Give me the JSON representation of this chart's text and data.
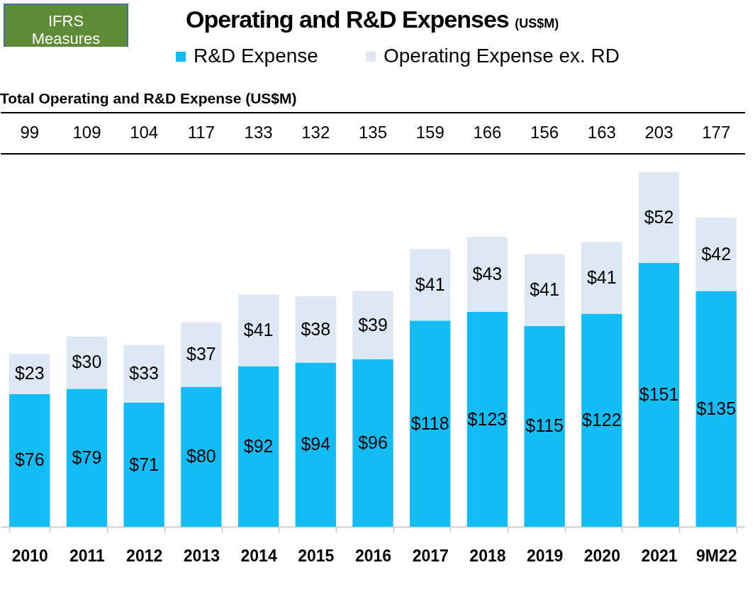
{
  "chart_data": {
    "type": "bar",
    "title": "Operating and R&D Expenses",
    "subtitle": "(US$M)",
    "stacked": true,
    "legend": "top",
    "annotations": [
      "IFRS Measures",
      "Total Operating and R&D Expense (US$M)",
      "99",
      "109",
      "104",
      "117",
      "133",
      "132",
      "135",
      "159",
      "166",
      "156",
      "163",
      "203",
      "177"
    ],
    "categories": [
      "2010",
      "2011",
      "2012",
      "2013",
      "2014",
      "2015",
      "2016",
      "2017",
      "2018",
      "2019",
      "2020",
      "2021",
      "9M22"
    ],
    "series": [
      {
        "name": "R&D Expense",
        "color": "#12bdf6",
        "values": [
          76,
          79,
          71,
          80,
          92,
          94,
          96,
          118,
          123,
          115,
          122,
          151,
          135
        ],
        "value_labels": [
          "$76",
          "$79",
          "$71",
          "$80",
          "$92",
          "$94",
          "$96",
          "$118",
          "$123",
          "$115",
          "$122",
          "$151",
          "$135"
        ]
      },
      {
        "name": "Operating Expense ex. RD",
        "color": "#dde8f4",
        "values": [
          23,
          30,
          33,
          37,
          41,
          38,
          39,
          41,
          43,
          41,
          41,
          52,
          42
        ],
        "value_labels": [
          "$23",
          "$30",
          "$33",
          "$37",
          "$41",
          "$38",
          "$39",
          "$41",
          "$43",
          "$41",
          "$41",
          "$52",
          "$42"
        ]
      }
    ]
  }
}
